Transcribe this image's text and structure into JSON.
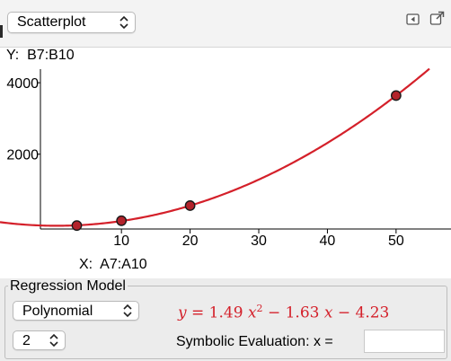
{
  "toolbar": {
    "plot_type": "Scatterplot",
    "plot_type_options": [
      "Scatterplot"
    ],
    "icons": [
      "collapse-panel-icon",
      "popout-window-icon"
    ]
  },
  "axes": {
    "y_label_prefix": "Y:",
    "y_range": "B7:B10",
    "x_label_prefix": "X:",
    "x_range": "A7:A10"
  },
  "chart_data": {
    "type": "scatter",
    "x_ticks": [
      10,
      20,
      30,
      40,
      50
    ],
    "y_ticks": [
      2000,
      4000
    ],
    "xlim": [
      -1.8,
      58
    ],
    "ylim": [
      -95,
      4380
    ],
    "points": [
      {
        "x": 3.5,
        "y": 1
      },
      {
        "x": 10,
        "y": 136
      },
      {
        "x": 20,
        "y": 560
      },
      {
        "x": 50,
        "y": 3640
      }
    ],
    "regression": {
      "model": "polynomial",
      "degree": 2,
      "coefficients": {
        "a": 1.49,
        "b": -1.63,
        "c": -4.23
      },
      "color": "#d4202a"
    },
    "point_color": "#b3232b"
  },
  "regression_panel": {
    "title": "Regression Model",
    "model_value": "Polynomial",
    "degree_value": "2",
    "formula": {
      "lhs": "y",
      "eq": "=",
      "a": "1.49",
      "var": "x",
      "exp": "2",
      "op1": "−",
      "b": "1.63",
      "op2": "−",
      "c": "4.23"
    },
    "symbolic_label": "Symbolic Evaluation:  x =",
    "symbolic_value": ""
  }
}
